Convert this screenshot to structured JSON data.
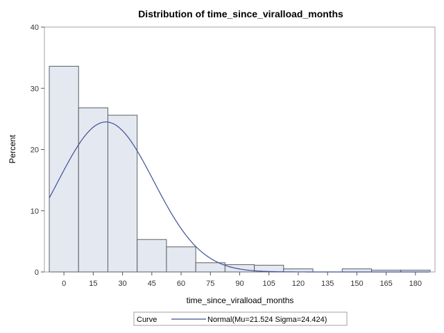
{
  "chart_data": {
    "type": "histogram",
    "title": "Distribution of time_since_viralload_months",
    "xlabel": "time_since_viralload_months",
    "ylabel": "Percent",
    "xlim": [
      -10,
      190
    ],
    "ylim": [
      0,
      40
    ],
    "x_ticks": [
      0,
      15,
      30,
      45,
      60,
      75,
      90,
      105,
      120,
      135,
      150,
      165,
      180
    ],
    "y_ticks": [
      0,
      10,
      20,
      30,
      40
    ],
    "bin_width": 15,
    "bins": [
      {
        "midpoint": 0,
        "percent": 33.6
      },
      {
        "midpoint": 15,
        "percent": 26.8
      },
      {
        "midpoint": 30,
        "percent": 25.6
      },
      {
        "midpoint": 45,
        "percent": 5.3
      },
      {
        "midpoint": 60,
        "percent": 4.1
      },
      {
        "midpoint": 75,
        "percent": 1.5
      },
      {
        "midpoint": 90,
        "percent": 1.2
      },
      {
        "midpoint": 105,
        "percent": 1.1
      },
      {
        "midpoint": 120,
        "percent": 0.5
      },
      {
        "midpoint": 135,
        "percent": 0.0
      },
      {
        "midpoint": 150,
        "percent": 0.5
      },
      {
        "midpoint": 165,
        "percent": 0.3
      },
      {
        "midpoint": 180,
        "percent": 0.3
      }
    ],
    "curve": {
      "type": "normal",
      "mu": 21.524,
      "sigma": 24.424,
      "legend_label": "Normal(Mu=21.524 Sigma=24.424)"
    },
    "legend": {
      "title": "Curve",
      "placement": "bottom"
    },
    "colors": {
      "bar_fill": "#e3e8f1",
      "bar_stroke": "#5a5f66",
      "curve": "#3f4f95",
      "frame": "#a0a0a0"
    }
  }
}
